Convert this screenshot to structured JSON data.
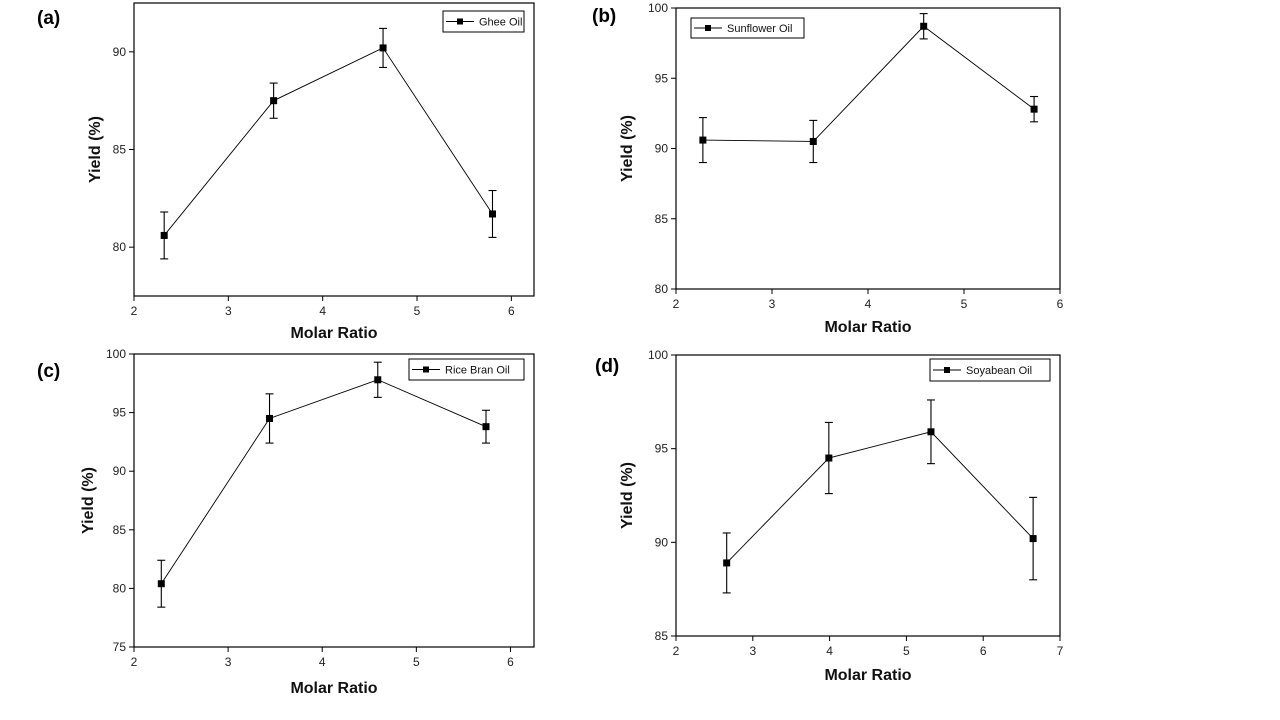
{
  "chart_data": [
    {
      "id": "a",
      "type": "line",
      "panel_label": "(a)",
      "title": "",
      "xlabel": "Molar Ratio",
      "ylabel": "Yield (%)",
      "xlim": [
        2,
        6.24
      ],
      "ylim": [
        77.5,
        92.5
      ],
      "xticks": [
        2,
        3,
        4,
        5,
        6
      ],
      "yticks": [
        80,
        85,
        90
      ],
      "grid": false,
      "legend_position": "top-right",
      "series": [
        {
          "name": "Ghee Oil",
          "color": "#000000",
          "marker": "square",
          "x": [
            2.32,
            3.48,
            4.64,
            5.8
          ],
          "y": [
            80.6,
            87.5,
            90.2,
            81.7
          ],
          "yerr": [
            1.2,
            0.9,
            1.0,
            1.2
          ]
        }
      ]
    },
    {
      "id": "b",
      "type": "line",
      "panel_label": "(b)",
      "title": "",
      "xlabel": "Molar Ratio",
      "ylabel": "Yield (%)",
      "xlim": [
        2,
        6
      ],
      "ylim": [
        80,
        100
      ],
      "xticks": [
        2,
        3,
        4,
        5,
        6
      ],
      "yticks": [
        80,
        85,
        90,
        95,
        100
      ],
      "grid": false,
      "legend_position": "top-left",
      "series": [
        {
          "name": "Sunflower Oil",
          "color": "#000000",
          "marker": "square",
          "x": [
            2.28,
            3.43,
            4.58,
            5.73
          ],
          "y": [
            90.6,
            90.5,
            98.7,
            92.8
          ],
          "yerr": [
            1.6,
            1.5,
            0.9,
            0.9
          ]
        }
      ]
    },
    {
      "id": "c",
      "type": "line",
      "panel_label": "(c)",
      "title": "",
      "xlabel": "Molar Ratio",
      "ylabel": "Yield (%)",
      "xlim": [
        2,
        6.25
      ],
      "ylim": [
        75,
        100
      ],
      "xticks": [
        2,
        3,
        4,
        5,
        6
      ],
      "yticks": [
        75,
        80,
        85,
        90,
        95,
        100
      ],
      "grid": false,
      "legend_position": "top-right",
      "series": [
        {
          "name": "Rice Bran Oil",
          "color": "#000000",
          "marker": "square",
          "x": [
            2.29,
            3.44,
            4.59,
            5.74
          ],
          "y": [
            80.4,
            94.5,
            97.8,
            93.8
          ],
          "yerr": [
            2.0,
            2.1,
            1.5,
            1.4
          ]
        }
      ]
    },
    {
      "id": "d",
      "type": "line",
      "panel_label": "(d)",
      "title": "",
      "xlabel": "Molar Ratio",
      "ylabel": "Yield (%)",
      "xlim": [
        2,
        7
      ],
      "ylim": [
        85,
        100
      ],
      "xticks": [
        2,
        3,
        4,
        5,
        6,
        7
      ],
      "yticks": [
        85,
        90,
        95,
        100
      ],
      "grid": false,
      "legend_position": "top-right",
      "series": [
        {
          "name": "Soyabean Oil",
          "color": "#000000",
          "marker": "square",
          "x": [
            2.66,
            3.99,
            5.32,
            6.65
          ],
          "y": [
            88.9,
            94.5,
            95.9,
            90.2
          ],
          "yerr": [
            1.6,
            1.9,
            1.7,
            2.2
          ]
        }
      ]
    }
  ]
}
